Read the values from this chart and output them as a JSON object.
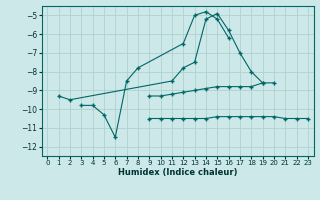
{
  "xlabel": "Humidex (Indice chaleur)",
  "background_color": "#cde8e8",
  "grid_color": "#b0d0d0",
  "line_color": "#006666",
  "xlim": [
    -0.5,
    23.5
  ],
  "ylim": [
    -12.5,
    -4.5
  ],
  "xticks": [
    0,
    1,
    2,
    3,
    4,
    5,
    6,
    7,
    8,
    9,
    10,
    11,
    12,
    13,
    14,
    15,
    16,
    17,
    18,
    19,
    20,
    21,
    22,
    23
  ],
  "yticks": [
    -12,
    -11,
    -10,
    -9,
    -8,
    -7,
    -6,
    -5
  ],
  "series": [
    [
      null,
      -9.3,
      -9.5,
      null,
      null,
      null,
      null,
      null,
      null,
      null,
      null,
      -8.5,
      -7.8,
      -7.5,
      -5.2,
      -4.9,
      -5.8,
      -7.0,
      -8.0,
      -8.6,
      null,
      null,
      null,
      null
    ],
    [
      null,
      null,
      null,
      -9.8,
      -9.8,
      -10.3,
      -11.5,
      -8.5,
      -7.8,
      null,
      null,
      null,
      -6.5,
      -5.0,
      -4.8,
      -5.2,
      -6.2,
      null,
      null,
      null,
      null,
      null,
      null,
      null
    ],
    [
      null,
      null,
      null,
      null,
      null,
      null,
      null,
      null,
      null,
      -9.3,
      -9.3,
      -9.2,
      -9.1,
      -9.0,
      -8.9,
      -8.8,
      -8.8,
      -8.8,
      -8.8,
      -8.6,
      -8.6,
      null,
      null,
      null
    ],
    [
      null,
      null,
      null,
      null,
      null,
      null,
      null,
      null,
      null,
      -10.5,
      -10.5,
      -10.5,
      -10.5,
      -10.5,
      -10.5,
      -10.4,
      -10.4,
      -10.4,
      -10.4,
      -10.4,
      -10.4,
      -10.5,
      -10.5,
      -10.5
    ]
  ]
}
